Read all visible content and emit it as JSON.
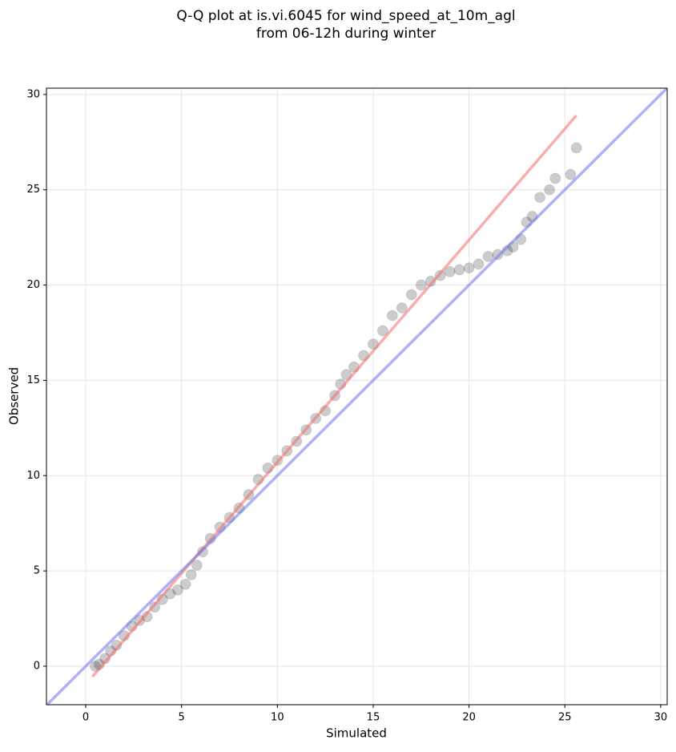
{
  "chart_data": {
    "type": "scatter",
    "title_lines": [
      "Q-Q plot at is.vi.6045 for wind_speed_at_10m_agl",
      "from 06-12h during winter"
    ],
    "x_label": "Simulated",
    "y_label": "Observed",
    "xlim": [
      -2.05,
      30.34
    ],
    "ylim": [
      -2.02,
      30.33
    ],
    "xticks": [
      0,
      5,
      10,
      15,
      20,
      25,
      30
    ],
    "yticks": [
      0,
      5,
      10,
      15,
      20,
      25,
      30
    ],
    "grid": true,
    "series": [
      {
        "kind": "scatter",
        "color": "#000000",
        "x": [
          0.5,
          0.7,
          1,
          1.3,
          1.6,
          2,
          2.4,
          2.8,
          3.2,
          3.6,
          4,
          4.4,
          4.8,
          5.2,
          5.5,
          5.8,
          6.1,
          6.5,
          7,
          7.5,
          8,
          8.5,
          9,
          9.5,
          10,
          10.5,
          11,
          11.5,
          12,
          12.5,
          13,
          13.3,
          13.6,
          14,
          14.5,
          15,
          15.5,
          16,
          16.5,
          17,
          17.5,
          18,
          18.5,
          19,
          19.5,
          20,
          20.5,
          21,
          21.5,
          22,
          22.3,
          22.7,
          23,
          23.3,
          23.7,
          24.2,
          24.5,
          25.3,
          25.6
        ],
        "values": [
          0,
          0.1,
          0.4,
          0.8,
          1.1,
          1.6,
          2.1,
          2.4,
          2.6,
          3.1,
          3.5,
          3.8,
          4,
          4.3,
          4.8,
          5.3,
          6,
          6.7,
          7.3,
          7.8,
          8.3,
          9,
          9.8,
          10.4,
          10.8,
          11.3,
          11.8,
          12.4,
          13,
          13.4,
          14.2,
          14.8,
          15.3,
          15.7,
          16.3,
          16.9,
          17.6,
          18.4,
          18.8,
          19.5,
          20,
          20.2,
          20.5,
          20.7,
          20.8,
          20.9,
          21.1,
          21.5,
          21.6,
          21.8,
          22,
          22.4,
          23.3,
          23.6,
          24.6,
          25,
          25.6,
          25.8,
          27.2
        ]
      },
      {
        "kind": "line",
        "color": "#f26b6b",
        "x": [
          0.35,
          25.6
        ],
        "values": [
          -0.55,
          28.9
        ]
      },
      {
        "kind": "line",
        "color": "#6b73ee",
        "x": [
          -2.05,
          30.34
        ],
        "values": [
          -2.05,
          30.34
        ]
      }
    ]
  }
}
